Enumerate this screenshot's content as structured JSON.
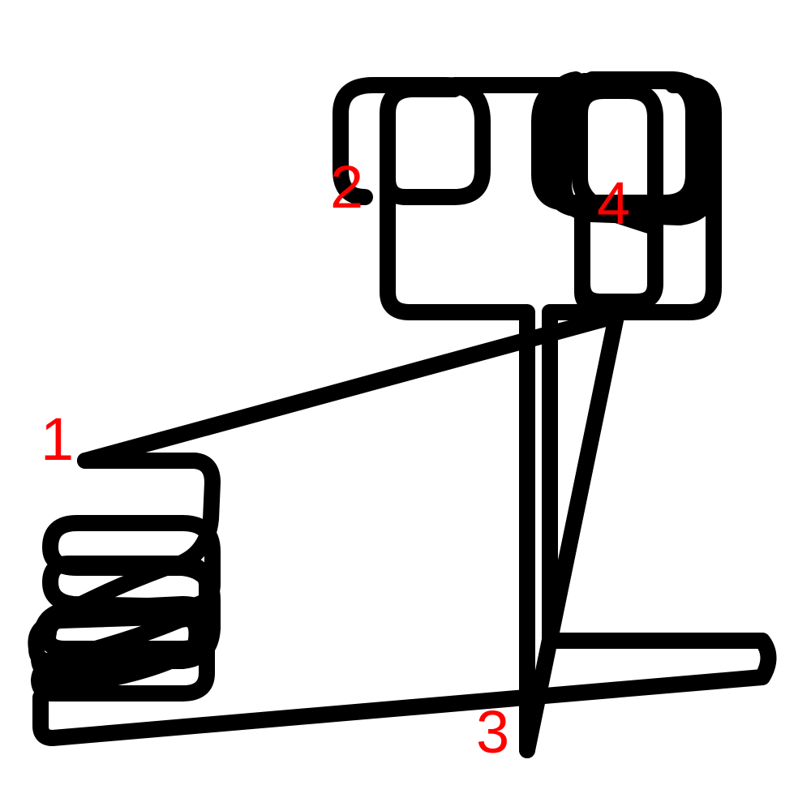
{
  "diagram": {
    "stroke_color": "#000000",
    "label_color": "#ff0000",
    "background_color": "#ffffff",
    "labels": [
      {
        "id": "1",
        "text": "1"
      },
      {
        "id": "2",
        "text": "2"
      },
      {
        "id": "3",
        "text": "3"
      },
      {
        "id": "4",
        "text": "4"
      }
    ]
  }
}
